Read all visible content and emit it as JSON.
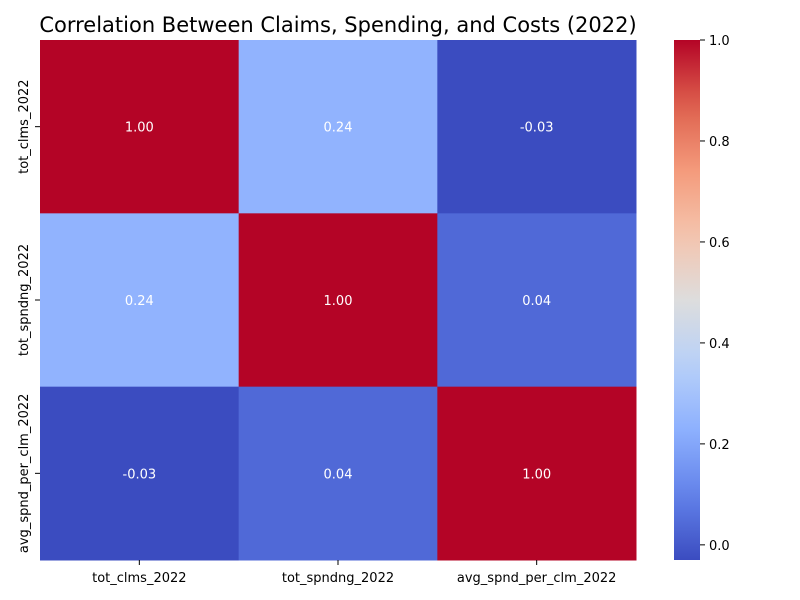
{
  "chart_data": {
    "type": "heatmap",
    "title": "Correlation Between Claims, Spending, and Costs (2022)",
    "x_categories": [
      "tot_clms_2022",
      "tot_spndng_2022",
      "avg_spnd_per_clm_2022"
    ],
    "y_categories": [
      "tot_clms_2022",
      "tot_spndng_2022",
      "avg_spnd_per_clm_2022"
    ],
    "values": [
      [
        1.0,
        0.24,
        -0.03
      ],
      [
        0.24,
        1.0,
        0.04
      ],
      [
        -0.03,
        0.04,
        1.0
      ]
    ],
    "value_labels": [
      [
        "1.00",
        "0.24",
        "-0.03"
      ],
      [
        "0.24",
        "1.00",
        "0.04"
      ],
      [
        "-0.03",
        "0.04",
        "1.00"
      ]
    ],
    "colormap": "coolwarm",
    "vmin": -0.03,
    "vmax": 1.0,
    "colorbar_ticks": [
      0.0,
      0.2,
      0.4,
      0.6,
      0.8,
      1.0
    ],
    "colorbar_tick_labels": [
      "0.0",
      "0.2",
      "0.4",
      "0.6",
      "0.8",
      "1.0"
    ],
    "colors": {
      "low": "#3b4cc0",
      "mid": "#dddddd",
      "high": "#b40426"
    }
  }
}
